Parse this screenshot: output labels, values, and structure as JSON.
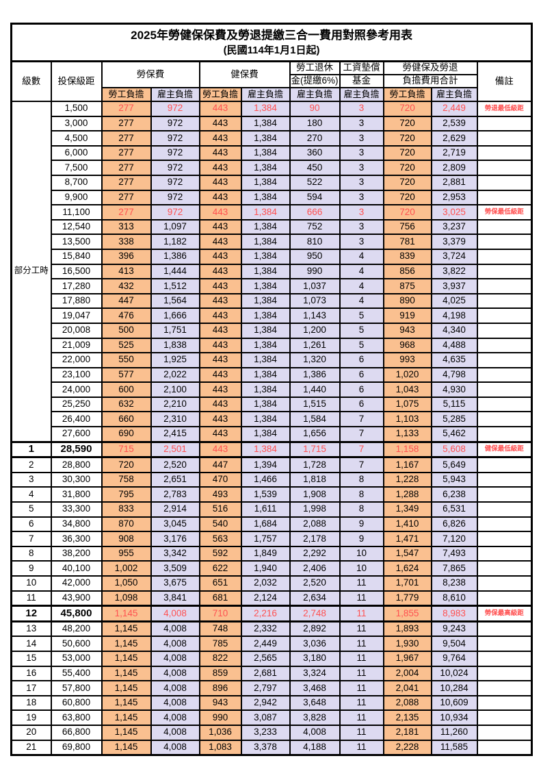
{
  "title": "2025年勞健保保費及勞退提繳三合一費用對照參考用表",
  "subtitle": "(民國114年1月1日起)",
  "columns": {
    "level": "級數",
    "bracket": "投保級距",
    "labor_insurance": "勞保費",
    "health_insurance": "健保費",
    "pension_line1": "勞工退休",
    "pension_line2": "金(提繳6%)",
    "wage_fund_line1": "工資墊償",
    "wage_fund_line2": "基金",
    "total_line1": "勞健保及勞退",
    "total_line2": "負擔費用合計",
    "note": "備註",
    "employee": "勞工負擔",
    "employer": "雇主負擔"
  },
  "part_time_label": "部分工時",
  "part_time_rowspan": 23,
  "colors": {
    "employee_bg": "#FAC090",
    "employer_bg": "#DDDAF1",
    "highlight_red": "#FF5050",
    "border": "#000000"
  },
  "rows": [
    {
      "lv": "",
      "br": "1,500",
      "li_emp": "277",
      "li_er": "972",
      "hi_emp": "443",
      "hi_er": "1,384",
      "pension": "90",
      "fund": "3",
      "tot_emp": "720",
      "tot_er": "2,449",
      "note": "勞退最低級距",
      "red": true,
      "bold": false
    },
    {
      "lv": "",
      "br": "3,000",
      "li_emp": "277",
      "li_er": "972",
      "hi_emp": "443",
      "hi_er": "1,384",
      "pension": "180",
      "fund": "3",
      "tot_emp": "720",
      "tot_er": "2,539",
      "note": "",
      "red": false,
      "bold": false
    },
    {
      "lv": "",
      "br": "4,500",
      "li_emp": "277",
      "li_er": "972",
      "hi_emp": "443",
      "hi_er": "1,384",
      "pension": "270",
      "fund": "3",
      "tot_emp": "720",
      "tot_er": "2,629",
      "note": "",
      "red": false,
      "bold": false
    },
    {
      "lv": "",
      "br": "6,000",
      "li_emp": "277",
      "li_er": "972",
      "hi_emp": "443",
      "hi_er": "1,384",
      "pension": "360",
      "fund": "3",
      "tot_emp": "720",
      "tot_er": "2,719",
      "note": "",
      "red": false,
      "bold": false
    },
    {
      "lv": "",
      "br": "7,500",
      "li_emp": "277",
      "li_er": "972",
      "hi_emp": "443",
      "hi_er": "1,384",
      "pension": "450",
      "fund": "3",
      "tot_emp": "720",
      "tot_er": "2,809",
      "note": "",
      "red": false,
      "bold": false
    },
    {
      "lv": "",
      "br": "8,700",
      "li_emp": "277",
      "li_er": "972",
      "hi_emp": "443",
      "hi_er": "1,384",
      "pension": "522",
      "fund": "3",
      "tot_emp": "720",
      "tot_er": "2,881",
      "note": "",
      "red": false,
      "bold": false
    },
    {
      "lv": "",
      "br": "9,900",
      "li_emp": "277",
      "li_er": "972",
      "hi_emp": "443",
      "hi_er": "1,384",
      "pension": "594",
      "fund": "3",
      "tot_emp": "720",
      "tot_er": "2,953",
      "note": "",
      "red": false,
      "bold": false
    },
    {
      "lv": "",
      "br": "11,100",
      "li_emp": "277",
      "li_er": "972",
      "hi_emp": "443",
      "hi_er": "1,384",
      "pension": "666",
      "fund": "3",
      "tot_emp": "720",
      "tot_er": "3,025",
      "note": "勞保最低級距",
      "red": true,
      "bold": false
    },
    {
      "lv": "",
      "br": "12,540",
      "li_emp": "313",
      "li_er": "1,097",
      "hi_emp": "443",
      "hi_er": "1,384",
      "pension": "752",
      "fund": "3",
      "tot_emp": "756",
      "tot_er": "3,237",
      "note": "",
      "red": false,
      "bold": false
    },
    {
      "lv": "",
      "br": "13,500",
      "li_emp": "338",
      "li_er": "1,182",
      "hi_emp": "443",
      "hi_er": "1,384",
      "pension": "810",
      "fund": "3",
      "tot_emp": "781",
      "tot_er": "3,379",
      "note": "",
      "red": false,
      "bold": false
    },
    {
      "lv": "",
      "br": "15,840",
      "li_emp": "396",
      "li_er": "1,386",
      "hi_emp": "443",
      "hi_er": "1,384",
      "pension": "950",
      "fund": "4",
      "tot_emp": "839",
      "tot_er": "3,724",
      "note": "",
      "red": false,
      "bold": false
    },
    {
      "lv": "",
      "br": "16,500",
      "li_emp": "413",
      "li_er": "1,444",
      "hi_emp": "443",
      "hi_er": "1,384",
      "pension": "990",
      "fund": "4",
      "tot_emp": "856",
      "tot_er": "3,822",
      "note": "",
      "red": false,
      "bold": false
    },
    {
      "lv": "",
      "br": "17,280",
      "li_emp": "432",
      "li_er": "1,512",
      "hi_emp": "443",
      "hi_er": "1,384",
      "pension": "1,037",
      "fund": "4",
      "tot_emp": "875",
      "tot_er": "3,937",
      "note": "",
      "red": false,
      "bold": false
    },
    {
      "lv": "",
      "br": "17,880",
      "li_emp": "447",
      "li_er": "1,564",
      "hi_emp": "443",
      "hi_er": "1,384",
      "pension": "1,073",
      "fund": "4",
      "tot_emp": "890",
      "tot_er": "4,025",
      "note": "",
      "red": false,
      "bold": false
    },
    {
      "lv": "",
      "br": "19,047",
      "li_emp": "476",
      "li_er": "1,666",
      "hi_emp": "443",
      "hi_er": "1,384",
      "pension": "1,143",
      "fund": "5",
      "tot_emp": "919",
      "tot_er": "4,198",
      "note": "",
      "red": false,
      "bold": false
    },
    {
      "lv": "",
      "br": "20,008",
      "li_emp": "500",
      "li_er": "1,751",
      "hi_emp": "443",
      "hi_er": "1,384",
      "pension": "1,200",
      "fund": "5",
      "tot_emp": "943",
      "tot_er": "4,340",
      "note": "",
      "red": false,
      "bold": false
    },
    {
      "lv": "",
      "br": "21,009",
      "li_emp": "525",
      "li_er": "1,838",
      "hi_emp": "443",
      "hi_er": "1,384",
      "pension": "1,261",
      "fund": "5",
      "tot_emp": "968",
      "tot_er": "4,488",
      "note": "",
      "red": false,
      "bold": false
    },
    {
      "lv": "",
      "br": "22,000",
      "li_emp": "550",
      "li_er": "1,925",
      "hi_emp": "443",
      "hi_er": "1,384",
      "pension": "1,320",
      "fund": "6",
      "tot_emp": "993",
      "tot_er": "4,635",
      "note": "",
      "red": false,
      "bold": false
    },
    {
      "lv": "",
      "br": "23,100",
      "li_emp": "577",
      "li_er": "2,022",
      "hi_emp": "443",
      "hi_er": "1,384",
      "pension": "1,386",
      "fund": "6",
      "tot_emp": "1,020",
      "tot_er": "4,798",
      "note": "",
      "red": false,
      "bold": false
    },
    {
      "lv": "",
      "br": "24,000",
      "li_emp": "600",
      "li_er": "2,100",
      "hi_emp": "443",
      "hi_er": "1,384",
      "pension": "1,440",
      "fund": "6",
      "tot_emp": "1,043",
      "tot_er": "4,930",
      "note": "",
      "red": false,
      "bold": false
    },
    {
      "lv": "",
      "br": "25,250",
      "li_emp": "632",
      "li_er": "2,210",
      "hi_emp": "443",
      "hi_er": "1,384",
      "pension": "1,515",
      "fund": "6",
      "tot_emp": "1,075",
      "tot_er": "5,115",
      "note": "",
      "red": false,
      "bold": false
    },
    {
      "lv": "",
      "br": "26,400",
      "li_emp": "660",
      "li_er": "2,310",
      "hi_emp": "443",
      "hi_er": "1,384",
      "pension": "1,584",
      "fund": "7",
      "tot_emp": "1,103",
      "tot_er": "5,285",
      "note": "",
      "red": false,
      "bold": false
    },
    {
      "lv": "",
      "br": "27,600",
      "li_emp": "690",
      "li_er": "2,415",
      "hi_emp": "443",
      "hi_er": "1,384",
      "pension": "1,656",
      "fund": "7",
      "tot_emp": "1,133",
      "tot_er": "5,462",
      "note": "",
      "red": false,
      "bold": false
    },
    {
      "lv": "1",
      "br": "28,590",
      "li_emp": "715",
      "li_er": "2,501",
      "hi_emp": "443",
      "hi_er": "1,384",
      "pension": "1,715",
      "fund": "7",
      "tot_emp": "1,158",
      "tot_er": "5,608",
      "note": "健保最低級距",
      "red": true,
      "bold": true
    },
    {
      "lv": "2",
      "br": "28,800",
      "li_emp": "720",
      "li_er": "2,520",
      "hi_emp": "447",
      "hi_er": "1,394",
      "pension": "1,728",
      "fund": "7",
      "tot_emp": "1,167",
      "tot_er": "5,649",
      "note": "",
      "red": false,
      "bold": false
    },
    {
      "lv": "3",
      "br": "30,300",
      "li_emp": "758",
      "li_er": "2,651",
      "hi_emp": "470",
      "hi_er": "1,466",
      "pension": "1,818",
      "fund": "8",
      "tot_emp": "1,228",
      "tot_er": "5,943",
      "note": "",
      "red": false,
      "bold": false
    },
    {
      "lv": "4",
      "br": "31,800",
      "li_emp": "795",
      "li_er": "2,783",
      "hi_emp": "493",
      "hi_er": "1,539",
      "pension": "1,908",
      "fund": "8",
      "tot_emp": "1,288",
      "tot_er": "6,238",
      "note": "",
      "red": false,
      "bold": false
    },
    {
      "lv": "5",
      "br": "33,300",
      "li_emp": "833",
      "li_er": "2,914",
      "hi_emp": "516",
      "hi_er": "1,611",
      "pension": "1,998",
      "fund": "8",
      "tot_emp": "1,349",
      "tot_er": "6,531",
      "note": "",
      "red": false,
      "bold": false
    },
    {
      "lv": "6",
      "br": "34,800",
      "li_emp": "870",
      "li_er": "3,045",
      "hi_emp": "540",
      "hi_er": "1,684",
      "pension": "2,088",
      "fund": "9",
      "tot_emp": "1,410",
      "tot_er": "6,826",
      "note": "",
      "red": false,
      "bold": false
    },
    {
      "lv": "7",
      "br": "36,300",
      "li_emp": "908",
      "li_er": "3,176",
      "hi_emp": "563",
      "hi_er": "1,757",
      "pension": "2,178",
      "fund": "9",
      "tot_emp": "1,471",
      "tot_er": "7,120",
      "note": "",
      "red": false,
      "bold": false
    },
    {
      "lv": "8",
      "br": "38,200",
      "li_emp": "955",
      "li_er": "3,342",
      "hi_emp": "592",
      "hi_er": "1,849",
      "pension": "2,292",
      "fund": "10",
      "tot_emp": "1,547",
      "tot_er": "7,493",
      "note": "",
      "red": false,
      "bold": false
    },
    {
      "lv": "9",
      "br": "40,100",
      "li_emp": "1,002",
      "li_er": "3,509",
      "hi_emp": "622",
      "hi_er": "1,940",
      "pension": "2,406",
      "fund": "10",
      "tot_emp": "1,624",
      "tot_er": "7,865",
      "note": "",
      "red": false,
      "bold": false
    },
    {
      "lv": "10",
      "br": "42,000",
      "li_emp": "1,050",
      "li_er": "3,675",
      "hi_emp": "651",
      "hi_er": "2,032",
      "pension": "2,520",
      "fund": "11",
      "tot_emp": "1,701",
      "tot_er": "8,238",
      "note": "",
      "red": false,
      "bold": false
    },
    {
      "lv": "11",
      "br": "43,900",
      "li_emp": "1,098",
      "li_er": "3,841",
      "hi_emp": "681",
      "hi_er": "2,124",
      "pension": "2,634",
      "fund": "11",
      "tot_emp": "1,779",
      "tot_er": "8,610",
      "note": "",
      "red": false,
      "bold": false
    },
    {
      "lv": "12",
      "br": "45,800",
      "li_emp": "1,145",
      "li_er": "4,008",
      "hi_emp": "710",
      "hi_er": "2,216",
      "pension": "2,748",
      "fund": "11",
      "tot_emp": "1,855",
      "tot_er": "8,983",
      "note": "勞保最高級距",
      "red": true,
      "bold": true
    },
    {
      "lv": "13",
      "br": "48,200",
      "li_emp": "1,145",
      "li_er": "4,008",
      "hi_emp": "748",
      "hi_er": "2,332",
      "pension": "2,892",
      "fund": "11",
      "tot_emp": "1,893",
      "tot_er": "9,243",
      "note": "",
      "red": false,
      "bold": false
    },
    {
      "lv": "14",
      "br": "50,600",
      "li_emp": "1,145",
      "li_er": "4,008",
      "hi_emp": "785",
      "hi_er": "2,449",
      "pension": "3,036",
      "fund": "11",
      "tot_emp": "1,930",
      "tot_er": "9,504",
      "note": "",
      "red": false,
      "bold": false
    },
    {
      "lv": "15",
      "br": "53,000",
      "li_emp": "1,145",
      "li_er": "4,008",
      "hi_emp": "822",
      "hi_er": "2,565",
      "pension": "3,180",
      "fund": "11",
      "tot_emp": "1,967",
      "tot_er": "9,764",
      "note": "",
      "red": false,
      "bold": false
    },
    {
      "lv": "16",
      "br": "55,400",
      "li_emp": "1,145",
      "li_er": "4,008",
      "hi_emp": "859",
      "hi_er": "2,681",
      "pension": "3,324",
      "fund": "11",
      "tot_emp": "2,004",
      "tot_er": "10,024",
      "note": "",
      "red": false,
      "bold": false
    },
    {
      "lv": "17",
      "br": "57,800",
      "li_emp": "1,145",
      "li_er": "4,008",
      "hi_emp": "896",
      "hi_er": "2,797",
      "pension": "3,468",
      "fund": "11",
      "tot_emp": "2,041",
      "tot_er": "10,284",
      "note": "",
      "red": false,
      "bold": false
    },
    {
      "lv": "18",
      "br": "60,800",
      "li_emp": "1,145",
      "li_er": "4,008",
      "hi_emp": "943",
      "hi_er": "2,942",
      "pension": "3,648",
      "fund": "11",
      "tot_emp": "2,088",
      "tot_er": "10,609",
      "note": "",
      "red": false,
      "bold": false
    },
    {
      "lv": "19",
      "br": "63,800",
      "li_emp": "1,145",
      "li_er": "4,008",
      "hi_emp": "990",
      "hi_er": "3,087",
      "pension": "3,828",
      "fund": "11",
      "tot_emp": "2,135",
      "tot_er": "10,934",
      "note": "",
      "red": false,
      "bold": false
    },
    {
      "lv": "20",
      "br": "66,800",
      "li_emp": "1,145",
      "li_er": "4,008",
      "hi_emp": "1,036",
      "hi_er": "3,233",
      "pension": "4,008",
      "fund": "11",
      "tot_emp": "2,181",
      "tot_er": "11,260",
      "note": "",
      "red": false,
      "bold": false
    },
    {
      "lv": "21",
      "br": "69,800",
      "li_emp": "1,145",
      "li_er": "4,008",
      "hi_emp": "1,083",
      "hi_er": "3,378",
      "pension": "4,188",
      "fund": "11",
      "tot_emp": "2,228",
      "tot_er": "11,585",
      "note": "",
      "red": false,
      "bold": false
    }
  ]
}
